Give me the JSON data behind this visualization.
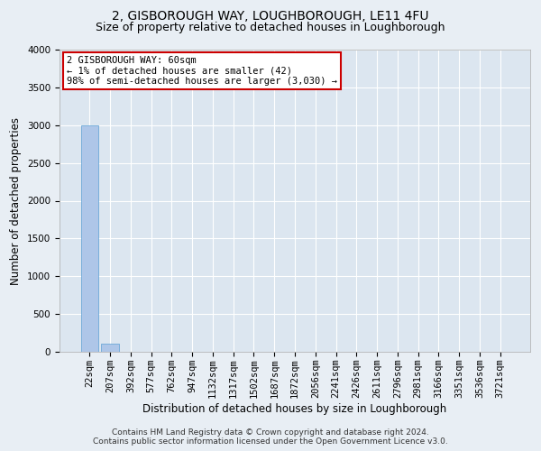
{
  "title1": "2, GISBOROUGH WAY, LOUGHBOROUGH, LE11 4FU",
  "title2": "Size of property relative to detached houses in Loughborough",
  "xlabel": "Distribution of detached houses by size in Loughborough",
  "ylabel": "Number of detached properties",
  "annotation_line1": "2 GISBOROUGH WAY: 60sqm",
  "annotation_line2": "← 1% of detached houses are smaller (42)",
  "annotation_line3": "98% of semi-detached houses are larger (3,030) →",
  "footer1": "Contains HM Land Registry data © Crown copyright and database right 2024.",
  "footer2": "Contains public sector information licensed under the Open Government Licence v3.0.",
  "categories": [
    "22sqm",
    "207sqm",
    "392sqm",
    "577sqm",
    "762sqm",
    "947sqm",
    "1132sqm",
    "1317sqm",
    "1502sqm",
    "1687sqm",
    "1872sqm",
    "2056sqm",
    "2241sqm",
    "2426sqm",
    "2611sqm",
    "2796sqm",
    "2981sqm",
    "3166sqm",
    "3351sqm",
    "3536sqm",
    "3721sqm"
  ],
  "values": [
    3000,
    110,
    0,
    0,
    0,
    0,
    0,
    0,
    0,
    0,
    0,
    0,
    0,
    0,
    0,
    0,
    0,
    0,
    0,
    0,
    0
  ],
  "bar_color": "#aec6e8",
  "bar_edge_color": "#5a9fd4",
  "annotation_box_color": "#ffffff",
  "annotation_box_edge": "#cc0000",
  "ylim": [
    0,
    4000
  ],
  "yticks": [
    0,
    500,
    1000,
    1500,
    2000,
    2500,
    3000,
    3500,
    4000
  ],
  "bg_color": "#e8eef4",
  "plot_bg_color": "#dce6f0",
  "grid_color": "#ffffff",
  "title1_fontsize": 10,
  "title2_fontsize": 9,
  "axis_label_fontsize": 8.5,
  "tick_fontsize": 7.5,
  "annotation_fontsize": 7.5,
  "footer_fontsize": 6.5
}
